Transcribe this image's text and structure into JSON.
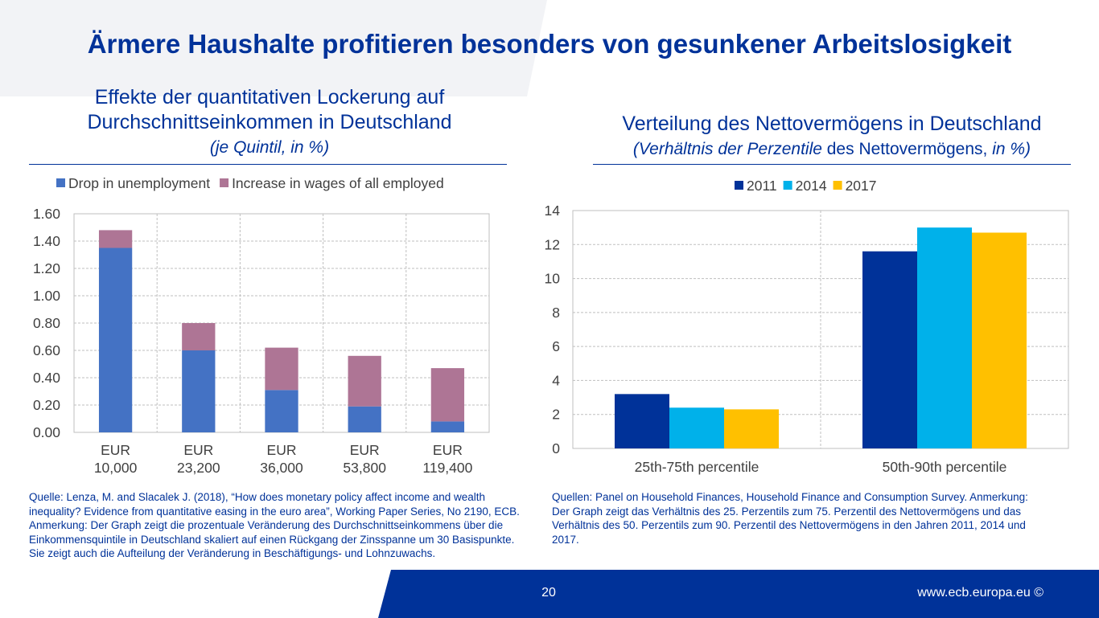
{
  "page": {
    "title": "Ärmere Haushalte profitieren besonders von gesunkener Arbeitslosigkeit",
    "page_number": "20",
    "site": "www.ecb.europa.eu ©"
  },
  "left": {
    "title_line1": "Effekte der quantitativen Lockerung auf",
    "title_line2": "Durchschnittseinkommen in Deutschland",
    "subtitle": "(je Quintil, in %)",
    "source": "Quelle: Lenza, M. and Slacalek J. (2018), “How does monetary policy affect income and wealth inequality? Evidence from quantitative easing in the euro area”, Working Paper Series, No 2190, ECB. Anmerkung: Der Graph zeigt die prozentuale Veränderung des Durchschnittseinkommens über die Einkommensquintile in Deutschland skaliert auf einen Rückgang der Zinsspanne um 30 Basispunkte. Sie zeigt auch die Aufteilung der Veränderung in Beschäftigungs- und Lohnzuwachs."
  },
  "right": {
    "title": "Verteilung des Nettovermögens in Deutschland",
    "subtitle_italic1": "(Verhältnis der Perzentile",
    "subtitle_normal": " des Nettovermögens, ",
    "subtitle_italic2": "in %)",
    "source": "Quellen: Panel on Household Finances, Household Finance and Consumption Survey. Anmerkung: Der Graph zeigt das Verhältnis des 25. Perzentils zum 75. Perzentil des Nettovermögens und das Verhältnis des 50. Perzentils zum 90. Perzentil des Nettovermögens in den Jahren 2011, 2014 und 2017."
  },
  "colors": {
    "brand_blue": "#003299",
    "footer_blue": "#003299"
  },
  "chart_data": [
    {
      "type": "bar",
      "stacked": true,
      "categories": [
        [
          "EUR",
          "10,000"
        ],
        [
          "EUR",
          "23,200"
        ],
        [
          "EUR",
          "36,000"
        ],
        [
          "EUR",
          "53,800"
        ],
        [
          "EUR",
          "119,400"
        ]
      ],
      "series": [
        {
          "name": "Drop in unemployment",
          "color": "#4472C4",
          "values": [
            1.35,
            0.6,
            0.31,
            0.19,
            0.08
          ]
        },
        {
          "name": "Increase in wages of all employed",
          "color": "#AE7595",
          "values": [
            0.13,
            0.2,
            0.31,
            0.37,
            0.39
          ]
        }
      ],
      "yticks": [
        "0.00",
        "0.20",
        "0.40",
        "0.60",
        "0.80",
        "1.00",
        "1.20",
        "1.40",
        "1.60"
      ],
      "ylim": [
        0,
        1.6
      ],
      "grid": true,
      "legend": "top"
    },
    {
      "type": "bar",
      "categories": [
        "25th-75th percentile",
        "50th-90th percentile"
      ],
      "series": [
        {
          "name": "2011",
          "color": "#003299",
          "values": [
            3.2,
            11.6
          ]
        },
        {
          "name": "2014",
          "color": "#00B1EA",
          "values": [
            2.4,
            13.0
          ]
        },
        {
          "name": "2017",
          "color": "#FFC000",
          "values": [
            2.3,
            12.7
          ]
        }
      ],
      "yticks": [
        "0",
        "2",
        "4",
        "6",
        "8",
        "10",
        "12",
        "14"
      ],
      "ylim": [
        0,
        14
      ],
      "grid": true,
      "legend": "top"
    }
  ]
}
